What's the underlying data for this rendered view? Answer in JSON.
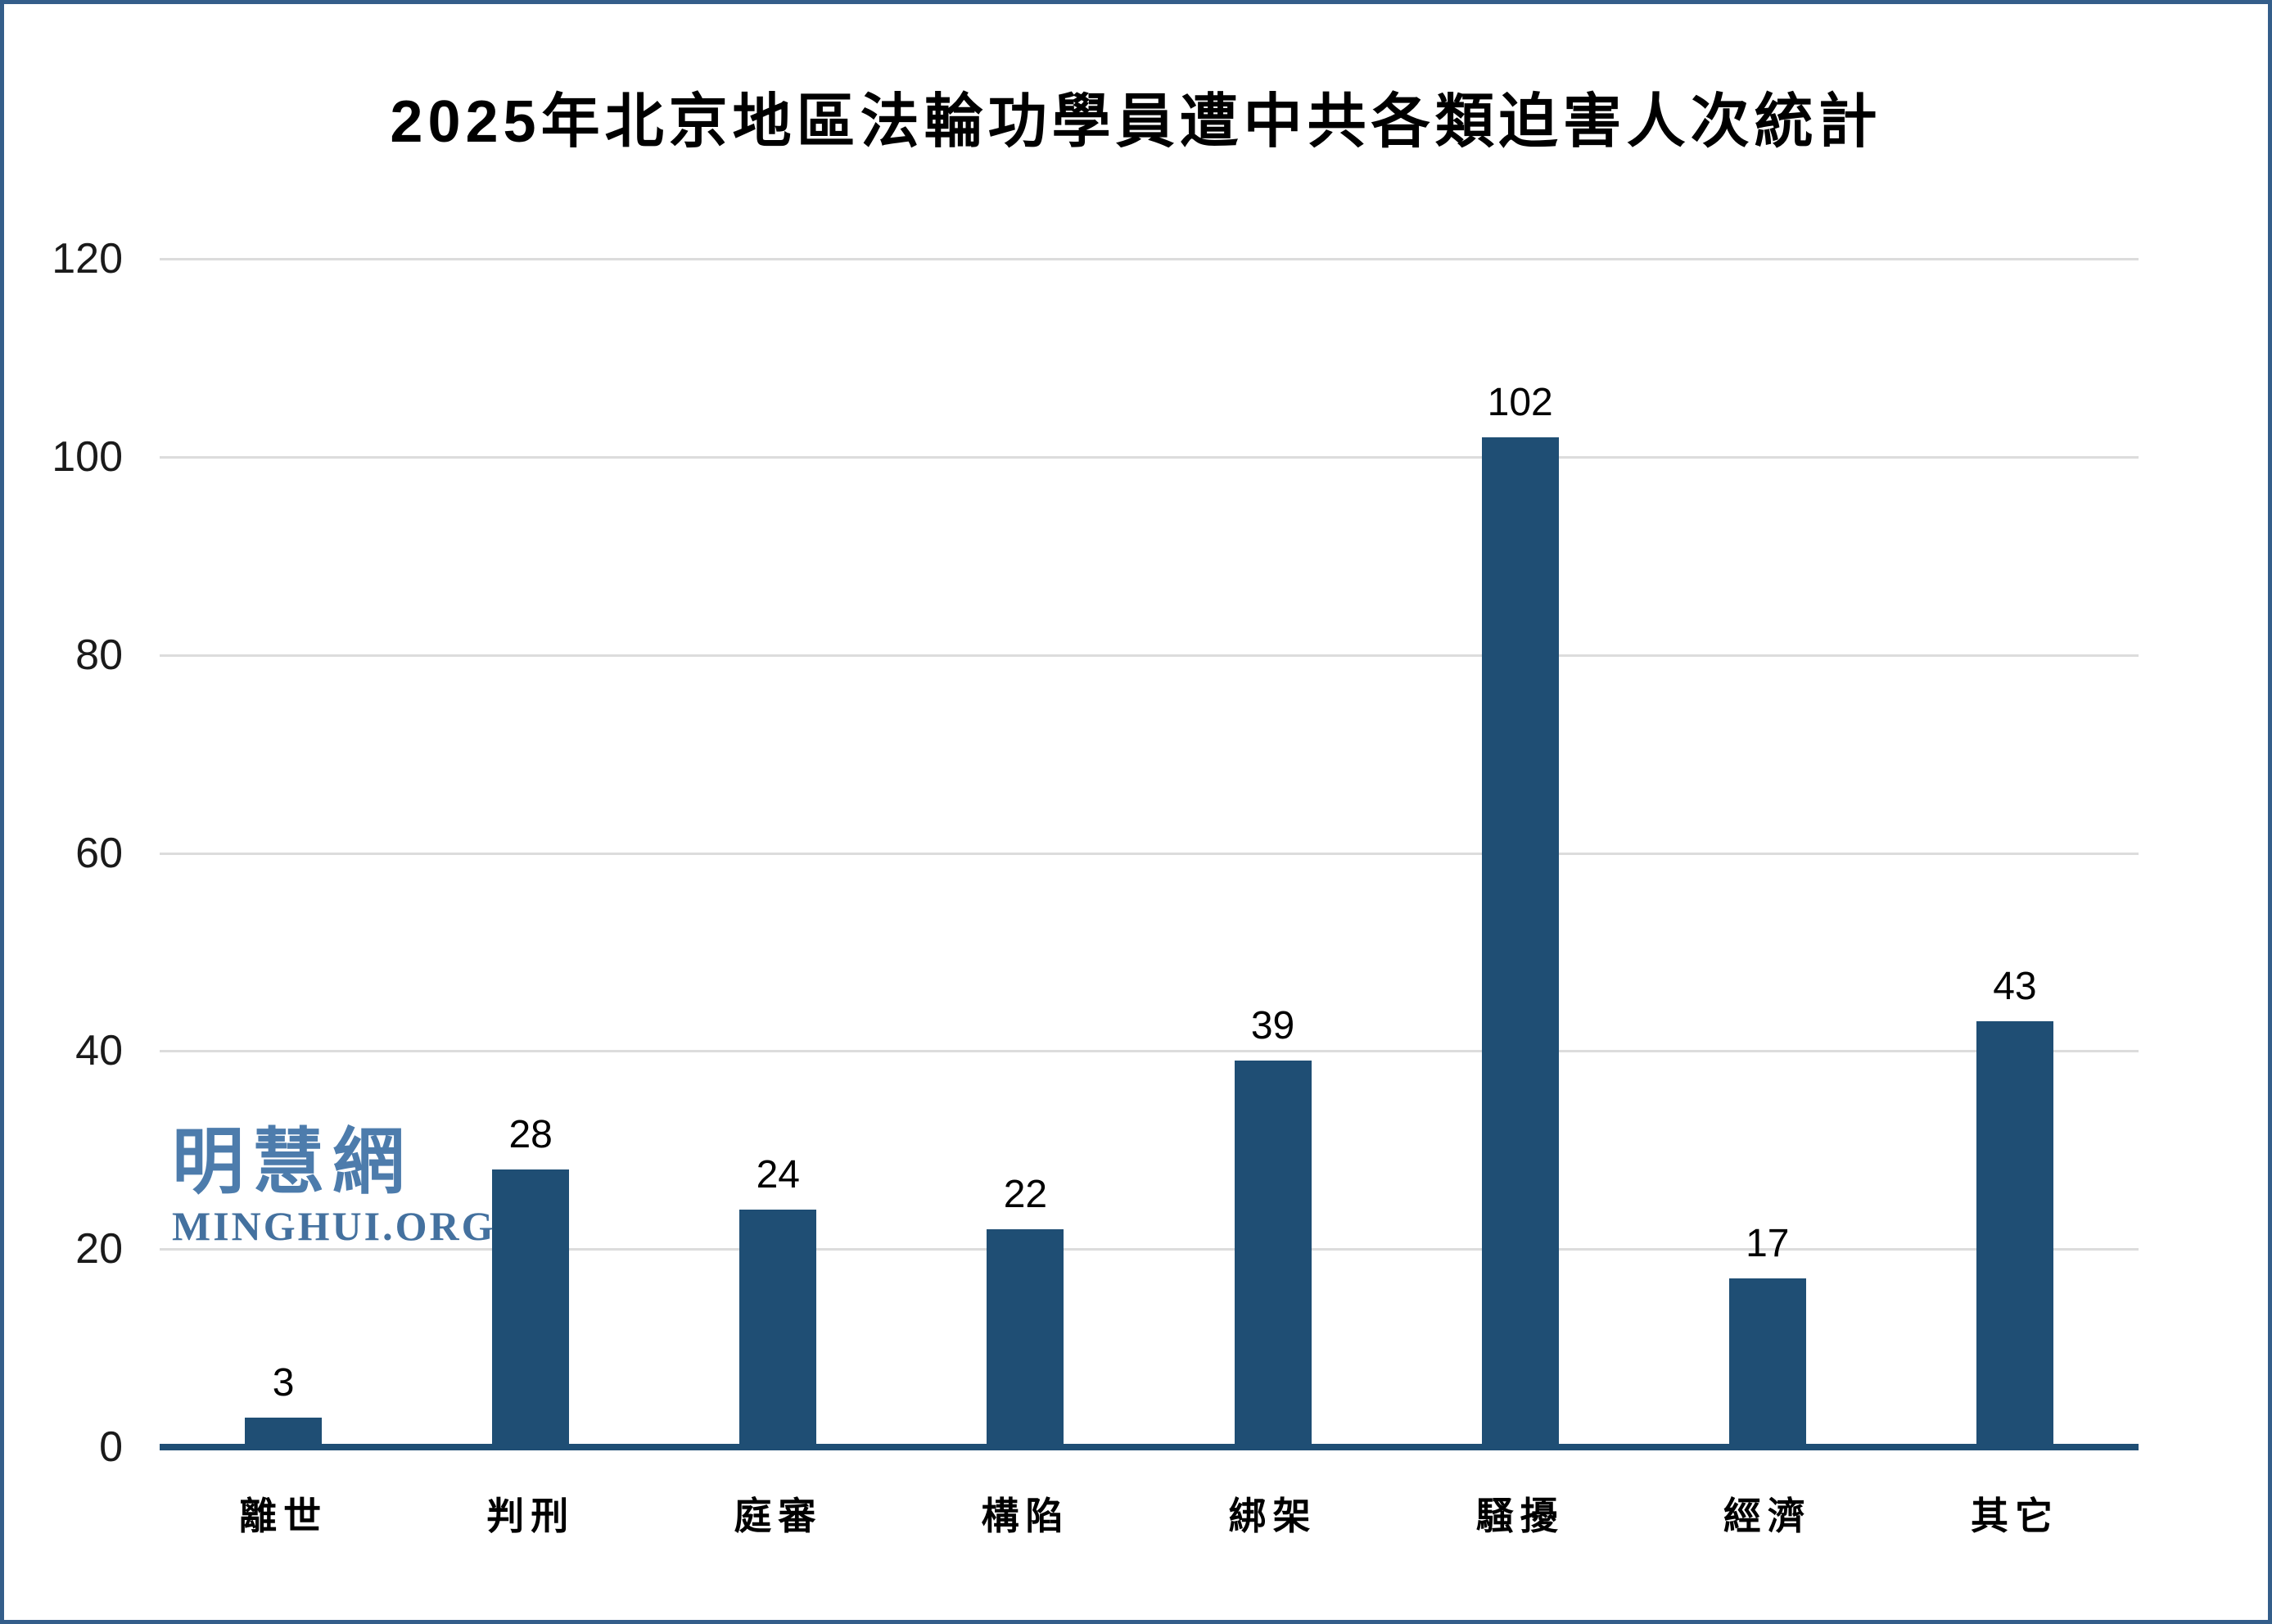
{
  "frame": {
    "border_color": "#345E8A",
    "background": "#FFFFFF"
  },
  "title": "2025年北京地區法輪功學員遭中共各類迫害人次統計",
  "watermark": {
    "cjk": "明慧網",
    "latin": "MINGHUI.ORG",
    "cjk_color": "#4D7CAC",
    "latin_color": "#44719F"
  },
  "chart_data": {
    "type": "bar",
    "title": "2025年北京地區法輪功學員遭中共各類迫害人次統計",
    "categories": [
      "離世",
      "判刑",
      "庭審",
      "構陷",
      "綁架",
      "騷擾",
      "經濟",
      "其它"
    ],
    "values": [
      3,
      28,
      24,
      22,
      39,
      102,
      17,
      43
    ],
    "xlabel": "",
    "ylabel": "",
    "ylim": [
      0,
      120
    ],
    "yticks": [
      0,
      20,
      40,
      60,
      80,
      100,
      120
    ],
    "grid": "horizontal",
    "legend": "none",
    "data_labels": [
      3,
      28,
      24,
      22,
      39,
      102,
      17,
      43
    ],
    "bar_color": "#1F4E74",
    "axis_line_color": "#1F4E74",
    "gridline_color": "#DCDCDC",
    "tick_label_color": "#1a1a1a",
    "value_label_color": "#000000"
  }
}
